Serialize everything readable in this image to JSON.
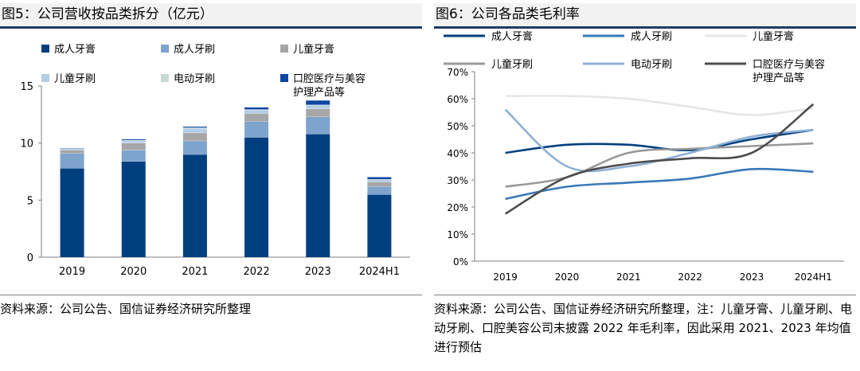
{
  "figures": [
    {
      "title": "图5：公司营收按品类拆分（亿元）",
      "source": "资料来源：公司公告、国信证券经济研究所整理"
    },
    {
      "title": "图6：公司各品类毛利率",
      "source": "资料来源：公司公告、国信证券经济研究所整理，注：儿童牙膏、儿童牙刷、电动牙刷、口腔美容公司未披露 2022 年毛利率，因此采用 2021、2023 年均值进行预估"
    }
  ],
  "chart_data": [
    {
      "type": "bar",
      "stacked": true,
      "title": "",
      "xlabel": "",
      "ylabel": "",
      "categories": [
        "2019",
        "2020",
        "2021",
        "2022",
        "2023",
        "2024H1"
      ],
      "ylim": [
        0,
        15
      ],
      "yticks": [
        "0",
        "5",
        "10",
        "15"
      ],
      "legend_position": "top",
      "series": [
        {
          "name": "成人牙膏",
          "color": "#003f7f",
          "values": [
            7.8,
            8.4,
            9.0,
            10.5,
            10.8,
            5.5
          ]
        },
        {
          "name": "成人牙刷",
          "color": "#7ea3cc",
          "values": [
            1.3,
            1.0,
            1.2,
            1.4,
            1.5,
            0.7
          ]
        },
        {
          "name": "儿童牙膏",
          "color": "#a6a6a6",
          "values": [
            0.3,
            0.6,
            0.7,
            0.7,
            0.7,
            0.4
          ]
        },
        {
          "name": "儿童牙刷",
          "color": "#b4cde6",
          "values": [
            0.1,
            0.2,
            0.4,
            0.3,
            0.3,
            0.2
          ]
        },
        {
          "name": "电动牙刷",
          "color": "#c9d9d3",
          "values": [
            0.0,
            0.05,
            0.05,
            0.05,
            0.05,
            0.03
          ]
        },
        {
          "name": "口腔医疗与美容护理产品等",
          "label_lines": [
            "口腔医疗与美容",
            "护理产品等"
          ],
          "color": "#0d47a1",
          "values": [
            0.05,
            0.1,
            0.1,
            0.2,
            0.4,
            0.2
          ]
        }
      ]
    },
    {
      "type": "line",
      "title": "",
      "xlabel": "",
      "ylabel": "",
      "categories": [
        "2019",
        "2020",
        "2021",
        "2022",
        "2023",
        "2024H1"
      ],
      "ylim": [
        0,
        70
      ],
      "yticks": [
        "0%",
        "10%",
        "20%",
        "30%",
        "40%",
        "50%",
        "60%",
        "70%"
      ],
      "legend_position": "top",
      "series": [
        {
          "name": "成人牙膏",
          "color": "#003f7f",
          "values": [
            40,
            43,
            43,
            41,
            45,
            48.5
          ]
        },
        {
          "name": "成人牙刷",
          "color": "#3a78b8",
          "values": [
            23,
            27.5,
            29,
            30.5,
            34,
            33
          ]
        },
        {
          "name": "儿童牙膏",
          "color": "#e6e6e6",
          "values": [
            61,
            61,
            60,
            57,
            54,
            56.5
          ]
        },
        {
          "name": "儿童牙刷",
          "color": "#999999",
          "values": [
            27.5,
            31,
            40,
            41.5,
            42.5,
            43.5
          ]
        },
        {
          "name": "电动牙刷",
          "color": "#8fb0d6",
          "values": [
            56,
            35,
            35,
            40,
            46,
            48.5
          ]
        },
        {
          "name": "口腔医疗与美容护理产品等",
          "label_lines": [
            "口腔医疗与美容",
            "护理产品等"
          ],
          "color": "#4d4d4d",
          "values": [
            17.5,
            31,
            36,
            38,
            40,
            58
          ]
        }
      ]
    }
  ]
}
